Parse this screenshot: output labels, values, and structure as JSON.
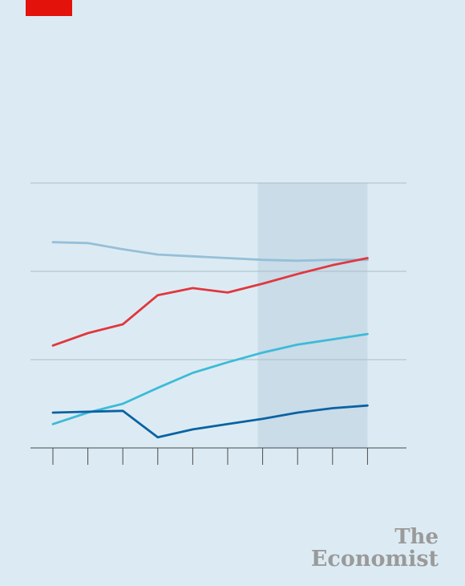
{
  "brand": {
    "line1": "The",
    "line2": "Economist",
    "tag_color": "#e3120b"
  },
  "colors": {
    "background": "#dcebf3",
    "shade": "#c9dce8",
    "grid": "#a9bcc8",
    "axis": "#4a4a4a"
  },
  "chart_data": {
    "type": "line",
    "title": "",
    "xlabel": "",
    "ylabel": "",
    "x": [
      0,
      1,
      2,
      3,
      4,
      5,
      6,
      7,
      8,
      9
    ],
    "x_tick_labels": [],
    "ylim": [
      0,
      3
    ],
    "gridlines": [
      1,
      2,
      3
    ],
    "shaded_x_range": [
      6,
      9
    ],
    "series": [
      {
        "color": "#96bfd8",
        "values": [
          2.33,
          2.32,
          2.25,
          2.19,
          2.17,
          2.15,
          2.13,
          2.12,
          2.13,
          2.13
        ]
      },
      {
        "color": "#e1373e",
        "values": [
          1.16,
          1.3,
          1.4,
          1.73,
          1.81,
          1.76,
          1.86,
          1.97,
          2.07,
          2.15
        ]
      },
      {
        "color": "#3ebad8",
        "values": [
          0.27,
          0.4,
          0.5,
          0.68,
          0.85,
          0.97,
          1.08,
          1.17,
          1.23,
          1.29
        ]
      },
      {
        "color": "#0b62a3",
        "values": [
          0.4,
          0.41,
          0.42,
          0.12,
          0.21,
          0.27,
          0.33,
          0.4,
          0.45,
          0.48
        ]
      }
    ]
  }
}
